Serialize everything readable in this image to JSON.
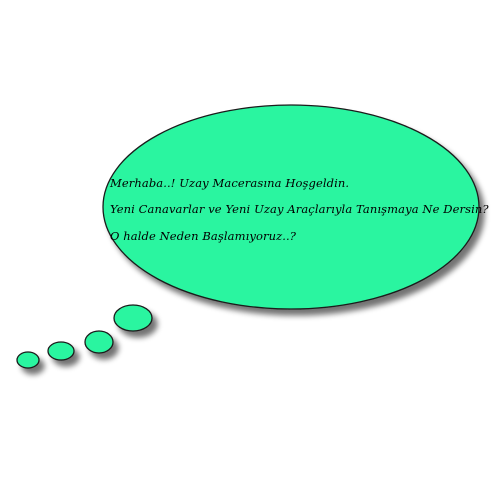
{
  "bubble": {
    "fill_color": "#2af5a0",
    "stroke_color": "#1a1a1a",
    "shadow_color": "#000000",
    "lines": [
      "Merhaba..! Uzay Macerasına Hoşgeldin.",
      "Yeni Canavarlar ve Yeni Uzay Araçlarıyla Tanışmaya Ne Dersin?",
      "O halde Neden Başlamıyoruz..?"
    ]
  }
}
